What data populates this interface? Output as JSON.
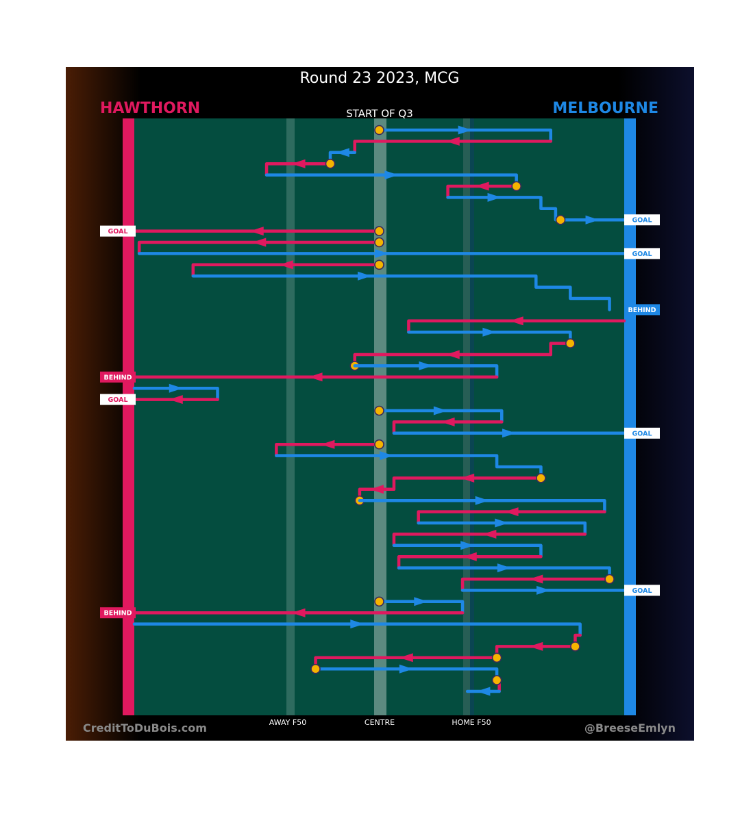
{
  "header": {
    "title": "Round 23 2023, MCG",
    "home_team": "HAWTHORN",
    "away_team": "MELBOURNE",
    "quarter_label": "START OF Q3"
  },
  "colors": {
    "hawthorn": "#e0195f",
    "melbourne": "#1e88e5",
    "field": "#044d3f",
    "background": "#000000",
    "stoppage": "#f5b400"
  },
  "footer": {
    "credit_left": "CreditToDuBois.com",
    "credit_right": "@BreeseEmlyn"
  },
  "chart_data": {
    "type": "line",
    "title": "Round 23 2023, MCG",
    "subtitle": "START OF Q3",
    "x_axis_labels": [
      "AWAY F50",
      "CENTRE",
      "HOME F50"
    ],
    "x_range": [
      0,
      1
    ],
    "x_note": "fraction of ground from Hawthorn goal (0) to Melbourne goal (1)",
    "chains": [
      {
        "team": "melbourne",
        "path": [
          [
            0.5,
            0.0
          ],
          [
            0.85,
            0.0
          ],
          [
            0.85,
            1
          ]
        ],
        "stoppage": "start"
      },
      {
        "team": "hawthorn",
        "path": [
          [
            0.85,
            1
          ],
          [
            0.45,
            1
          ],
          [
            0.45,
            2
          ]
        ]
      },
      {
        "team": "melbourne",
        "path": [
          [
            0.45,
            2
          ],
          [
            0.4,
            2
          ],
          [
            0.4,
            3
          ]
        ],
        "stoppage": "end"
      },
      {
        "team": "hawthorn",
        "path": [
          [
            0.4,
            3
          ],
          [
            0.27,
            3
          ],
          [
            0.27,
            4
          ]
        ],
        "stoppage": "start"
      },
      {
        "team": "melbourne",
        "path": [
          [
            0.27,
            4
          ],
          [
            0.78,
            4
          ],
          [
            0.78,
            5
          ]
        ]
      },
      {
        "team": "hawthorn",
        "path": [
          [
            0.78,
            5
          ],
          [
            0.64,
            5
          ],
          [
            0.64,
            6
          ]
        ],
        "stoppage": "start"
      },
      {
        "team": "melbourne",
        "path": [
          [
            0.64,
            6
          ],
          [
            0.83,
            6
          ],
          [
            0.83,
            7
          ],
          [
            0.86,
            7
          ],
          [
            0.86,
            8
          ]
        ]
      },
      {
        "team": "melbourne",
        "path": [
          [
            0.87,
            8
          ],
          [
            1.0,
            8
          ]
        ],
        "stoppage": "start",
        "result": "GOAL"
      },
      {
        "team": "hawthorn",
        "path": [
          [
            0.5,
            9
          ],
          [
            0.0,
            9
          ]
        ],
        "stoppage": "start",
        "result": "GOAL"
      },
      {
        "team": "hawthorn",
        "path": [
          [
            0.5,
            10
          ],
          [
            0.01,
            10
          ],
          [
            0.01,
            11
          ]
        ],
        "stoppage": "start"
      },
      {
        "team": "melbourne",
        "path": [
          [
            0.01,
            11
          ],
          [
            1.0,
            11
          ]
        ],
        "result": "GOAL"
      },
      {
        "team": "hawthorn",
        "path": [
          [
            0.5,
            12
          ],
          [
            0.12,
            12
          ],
          [
            0.12,
            13
          ]
        ],
        "stoppage": "start"
      },
      {
        "team": "melbourne",
        "path": [
          [
            0.12,
            13
          ],
          [
            0.82,
            13
          ],
          [
            0.82,
            14
          ],
          [
            0.89,
            14
          ],
          [
            0.89,
            15
          ],
          [
            0.97,
            15
          ],
          [
            0.97,
            16
          ]
        ],
        "result": "BEHIND"
      },
      {
        "team": "hawthorn",
        "path": [
          [
            1.0,
            17
          ],
          [
            0.56,
            17
          ],
          [
            0.56,
            18
          ]
        ]
      },
      {
        "team": "melbourne",
        "path": [
          [
            0.56,
            18
          ],
          [
            0.89,
            18
          ],
          [
            0.89,
            19
          ]
        ]
      },
      {
        "team": "hawthorn",
        "path": [
          [
            0.89,
            19
          ],
          [
            0.85,
            19
          ],
          [
            0.85,
            20
          ]
        ],
        "stoppage": "start"
      },
      {
        "team": "hawthorn",
        "path": [
          [
            0.85,
            20
          ],
          [
            0.45,
            20
          ],
          [
            0.45,
            21
          ]
        ],
        "stoppage": "end"
      },
      {
        "team": "melbourne",
        "path": [
          [
            0.45,
            21
          ],
          [
            0.74,
            21
          ],
          [
            0.74,
            22
          ]
        ]
      },
      {
        "team": "hawthorn",
        "path": [
          [
            0.74,
            22
          ],
          [
            0.0,
            22
          ]
        ],
        "result": "BEHIND"
      },
      {
        "team": "melbourne",
        "path": [
          [
            0.0,
            23
          ],
          [
            0.17,
            23
          ],
          [
            0.17,
            24
          ]
        ]
      },
      {
        "team": "hawthorn",
        "path": [
          [
            0.17,
            24
          ],
          [
            0.0,
            24
          ]
        ],
        "result": "GOAL"
      },
      {
        "team": "melbourne",
        "path": [
          [
            0.5,
            25
          ],
          [
            0.75,
            25
          ],
          [
            0.75,
            26
          ]
        ],
        "stoppage": "start"
      },
      {
        "team": "hawthorn",
        "path": [
          [
            0.75,
            26
          ],
          [
            0.53,
            26
          ],
          [
            0.53,
            27
          ]
        ]
      },
      {
        "team": "melbourne",
        "path": [
          [
            0.53,
            27
          ],
          [
            1.0,
            27
          ]
        ],
        "result": "GOAL"
      },
      {
        "team": "hawthorn",
        "path": [
          [
            0.5,
            28
          ],
          [
            0.29,
            28
          ],
          [
            0.29,
            29
          ]
        ],
        "stoppage": "start"
      },
      {
        "team": "melbourne",
        "path": [
          [
            0.29,
            29
          ],
          [
            0.74,
            29
          ],
          [
            0.74,
            30
          ],
          [
            0.83,
            30
          ],
          [
            0.83,
            31
          ]
        ]
      },
      {
        "team": "hawthorn",
        "path": [
          [
            0.83,
            31
          ],
          [
            0.53,
            31
          ],
          [
            0.53,
            32
          ]
        ],
        "stoppage": "start"
      },
      {
        "team": "hawthorn",
        "path": [
          [
            0.53,
            32
          ],
          [
            0.46,
            32
          ],
          [
            0.46,
            33
          ]
        ],
        "stoppage": "end"
      },
      {
        "team": "melbourne",
        "path": [
          [
            0.46,
            33
          ],
          [
            0.96,
            33
          ],
          [
            0.96,
            34
          ]
        ]
      },
      {
        "team": "hawthorn",
        "path": [
          [
            0.96,
            34
          ],
          [
            0.58,
            34
          ],
          [
            0.58,
            35
          ]
        ]
      },
      {
        "team": "melbourne",
        "path": [
          [
            0.58,
            35
          ],
          [
            0.92,
            35
          ],
          [
            0.92,
            36
          ]
        ]
      },
      {
        "team": "hawthorn",
        "path": [
          [
            0.92,
            36
          ],
          [
            0.53,
            36
          ],
          [
            0.53,
            37
          ]
        ]
      },
      {
        "team": "melbourne",
        "path": [
          [
            0.53,
            37
          ],
          [
            0.83,
            37
          ],
          [
            0.83,
            38
          ]
        ]
      },
      {
        "team": "hawthorn",
        "path": [
          [
            0.83,
            38
          ],
          [
            0.54,
            38
          ],
          [
            0.54,
            39
          ]
        ]
      },
      {
        "team": "melbourne",
        "path": [
          [
            0.54,
            39
          ],
          [
            0.97,
            39
          ],
          [
            0.97,
            40
          ]
        ]
      },
      {
        "team": "hawthorn",
        "path": [
          [
            0.97,
            40
          ],
          [
            0.67,
            40
          ],
          [
            0.67,
            41
          ]
        ],
        "stoppage": "start"
      },
      {
        "team": "melbourne",
        "path": [
          [
            0.67,
            41
          ],
          [
            1.0,
            41
          ]
        ],
        "result": "GOAL"
      },
      {
        "team": "melbourne",
        "path": [
          [
            0.5,
            42
          ],
          [
            0.67,
            42
          ],
          [
            0.67,
            43
          ]
        ],
        "stoppage": "start"
      },
      {
        "team": "hawthorn",
        "path": [
          [
            0.67,
            43
          ],
          [
            0.0,
            43
          ]
        ],
        "result": "BEHIND"
      },
      {
        "team": "melbourne",
        "path": [
          [
            0.0,
            44
          ],
          [
            0.91,
            44
          ],
          [
            0.91,
            45
          ]
        ]
      },
      {
        "team": "hawthorn",
        "path": [
          [
            0.91,
            45
          ],
          [
            0.9,
            45
          ],
          [
            0.9,
            46
          ]
        ]
      },
      {
        "team": "hawthorn",
        "path": [
          [
            0.9,
            46
          ],
          [
            0.74,
            46
          ],
          [
            0.74,
            47
          ]
        ],
        "stoppage": "start"
      },
      {
        "team": "hawthorn",
        "path": [
          [
            0.74,
            47
          ],
          [
            0.37,
            47
          ],
          [
            0.37,
            48
          ]
        ],
        "stoppage": "start"
      },
      {
        "team": "melbourne",
        "path": [
          [
            0.37,
            48
          ],
          [
            0.74,
            48
          ],
          [
            0.74,
            49
          ]
        ],
        "stoppage": "start"
      },
      {
        "team": "hawthorn",
        "path": [
          [
            0.74,
            49
          ],
          [
            0.745,
            49
          ],
          [
            0.745,
            50
          ]
        ],
        "stoppage": "start"
      },
      {
        "team": "melbourne",
        "path": [
          [
            0.745,
            50
          ],
          [
            0.68,
            50
          ]
        ]
      }
    ]
  }
}
